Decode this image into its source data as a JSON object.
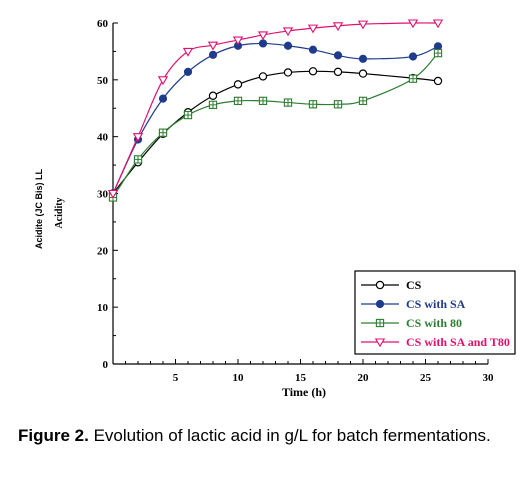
{
  "caption": {
    "label": "Figure 2.",
    "text": " Evolution of lactic acid in g/L for batch fermentations."
  },
  "chart_data": {
    "type": "line",
    "title": "",
    "xlabel": "Time (h)",
    "ylabel": "Acidite (JC Bis) LL",
    "ylabel_secondary": "Acidity",
    "xlim": [
      0,
      30
    ],
    "ylim": [
      0,
      60
    ],
    "xticks": [
      5,
      10,
      15,
      20,
      25,
      30
    ],
    "yticks": [
      0,
      10,
      20,
      30,
      40,
      50,
      60
    ],
    "grid": false,
    "legend_position": "bottom-right",
    "series": [
      {
        "name": "CS",
        "color": "#000000",
        "marker": "circle-open",
        "x": [
          0,
          2,
          4,
          6,
          8,
          10,
          12,
          14,
          16,
          18,
          20,
          24,
          26
        ],
        "y": [
          30,
          35.5,
          40.5,
          44.3,
          47.2,
          49.2,
          50.6,
          51.3,
          51.5,
          51.4,
          51.1,
          50.3,
          49.8
        ]
      },
      {
        "name": "CS with SA",
        "color": "#1f3c8c",
        "marker": "circle-filled",
        "x": [
          0,
          2,
          4,
          6,
          8,
          10,
          12,
          14,
          16,
          18,
          20,
          24,
          26
        ],
        "y": [
          30,
          39.5,
          46.7,
          51.4,
          54.4,
          56,
          56.4,
          56,
          55.3,
          54.3,
          53.7,
          54.1,
          55.9
        ]
      },
      {
        "name": "CS with 80",
        "color": "#2e7d32",
        "marker": "square-plus",
        "x": [
          0,
          2,
          4,
          6,
          8,
          10,
          12,
          14,
          16,
          18,
          20,
          24,
          26
        ],
        "y": [
          29.3,
          36,
          40.7,
          43.8,
          45.6,
          46.3,
          46.3,
          46,
          45.7,
          45.7,
          46.3,
          50.2,
          54.7
        ]
      },
      {
        "name": "CS with SA and T80",
        "color": "#e0106f",
        "marker": "triangle-down",
        "x": [
          0,
          2,
          4,
          6,
          8,
          10,
          12,
          14,
          16,
          18,
          20,
          24,
          26
        ],
        "y": [
          30,
          40,
          50,
          55,
          56.1,
          57,
          57.9,
          58.6,
          59.1,
          59.5,
          59.8,
          60,
          60
        ]
      }
    ]
  }
}
